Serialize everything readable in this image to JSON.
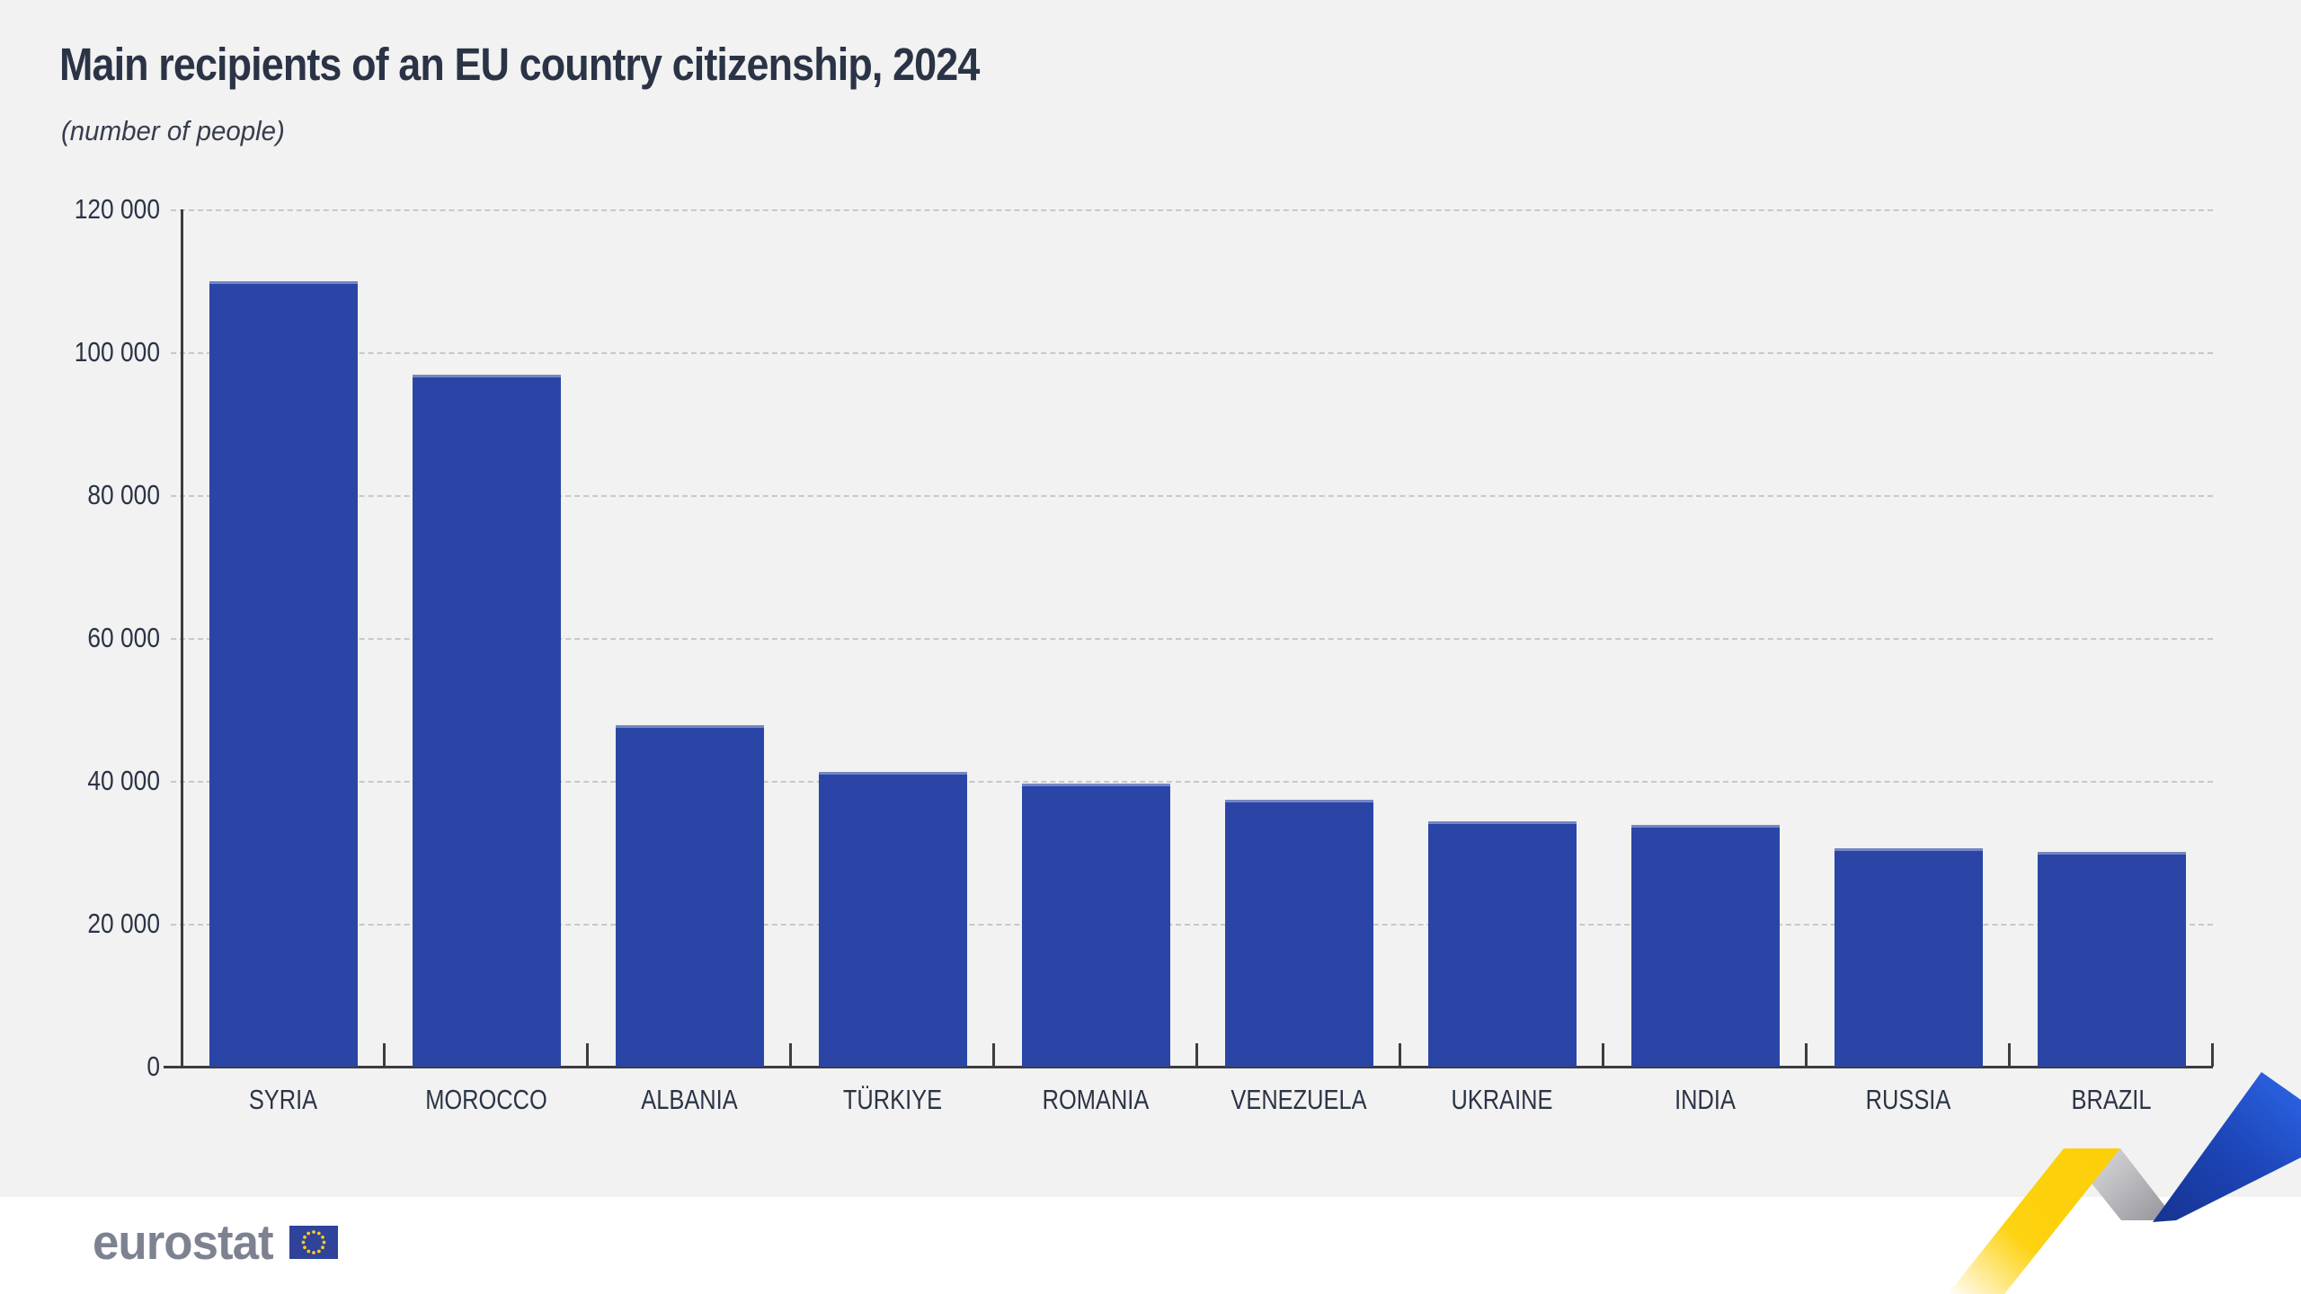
{
  "header": {
    "title": "Main recipients of an EU country citizenship, 2024",
    "subtitle": "(number of people)"
  },
  "chart_data": {
    "type": "bar",
    "title": "Main recipients of an EU country citizenship, 2024",
    "subtitle": "(number of people)",
    "categories": [
      "SYRIA",
      "MOROCCO",
      "ALBANIA",
      "TÜRKIYE",
      "ROMANIA",
      "VENEZUELA",
      "UKRAINE",
      "INDIA",
      "RUSSIA",
      "BRAZIL"
    ],
    "values": [
      110000,
      96900,
      47800,
      41300,
      39600,
      37400,
      34300,
      33900,
      30600,
      30100
    ],
    "xlabel": "",
    "ylabel": "number of people",
    "ylim": [
      0,
      120000
    ],
    "yticks": [
      0,
      20000,
      40000,
      60000,
      80000,
      100000,
      120000
    ],
    "ytick_labels": [
      "0",
      "20 000",
      "40 000",
      "60 000",
      "80 000",
      "100 000",
      "120 000"
    ],
    "grid": "horizontal-dashed",
    "legend_position": "none",
    "bar_color": "#2a45a6"
  },
  "footer": {
    "logo_text": "eurostat"
  },
  "colors": {
    "chart_background": "#f1f2f1",
    "page_background": "#ffffff",
    "bar": "#2a45a6",
    "text_dark": "#2b3346",
    "gridline": "#c8c8c8",
    "axis": "#3d3d40",
    "logo_gray": "#7d8291",
    "eu_flag_blue": "#2e4399",
    "eu_star_yellow": "#f8c822",
    "ribbon_yellow": "#fdd20e",
    "ribbon_blue": "#2459d8",
    "ribbon_gray": "#b4b5ba"
  }
}
